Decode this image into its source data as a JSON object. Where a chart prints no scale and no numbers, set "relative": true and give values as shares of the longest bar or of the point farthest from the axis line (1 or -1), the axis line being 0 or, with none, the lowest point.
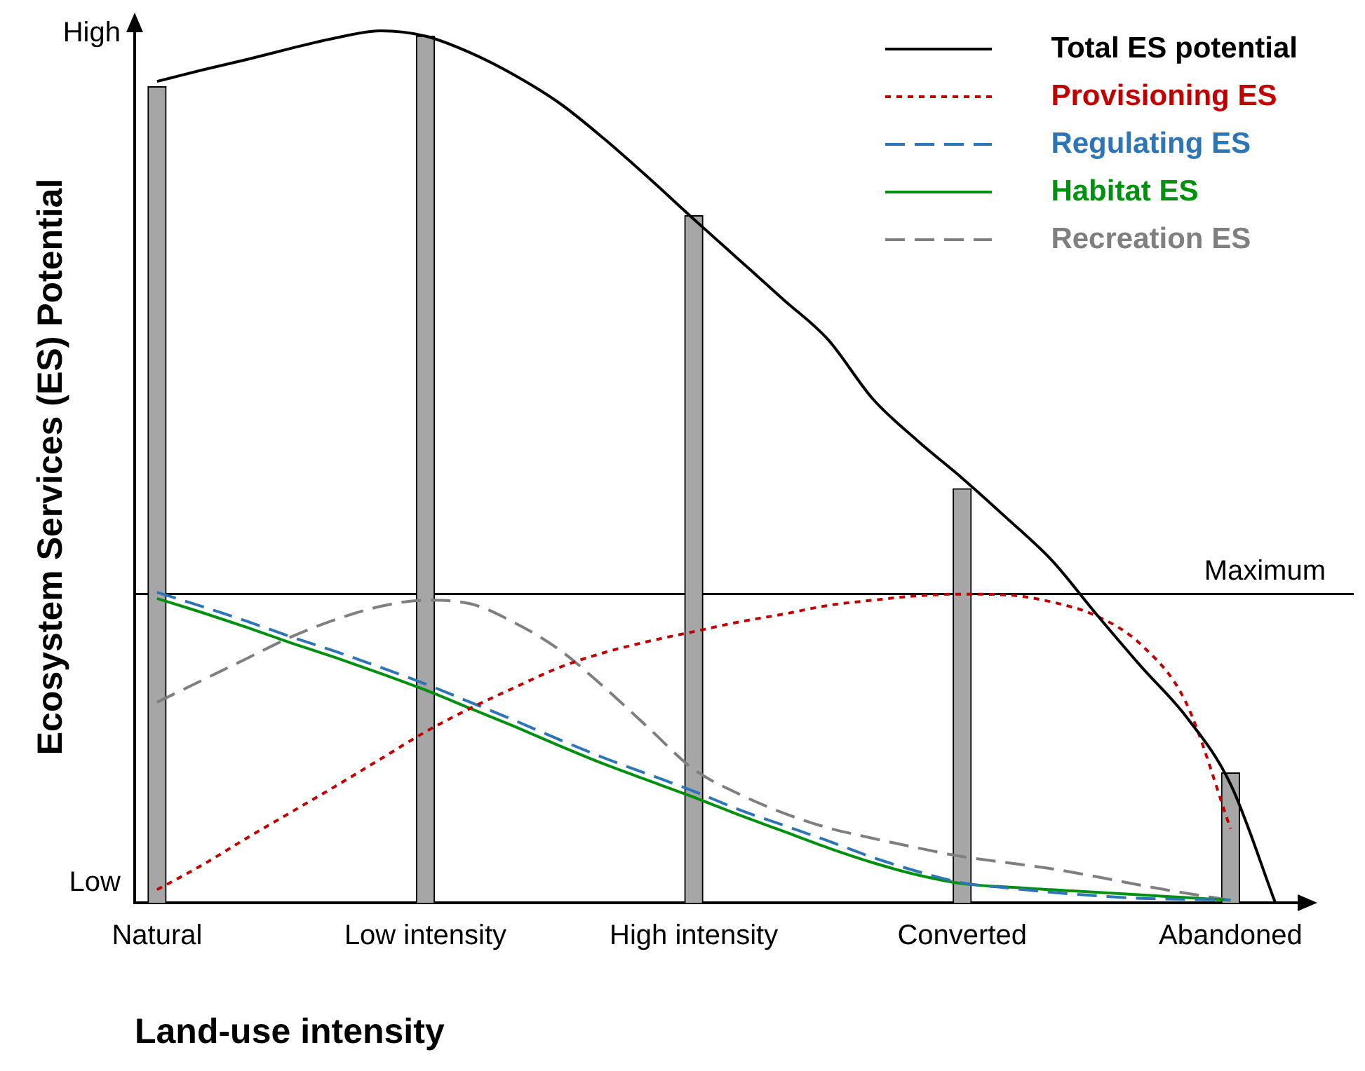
{
  "chart_data": {
    "type": "line",
    "relative": true,
    "xlabel": "Land-use intensity",
    "ylabel": "Ecosystem Services (ES) Potential",
    "categories": [
      "Natural",
      null,
      null,
      null,
      null,
      null,
      "Low intensity",
      null,
      null,
      null,
      null,
      null,
      "High intensity",
      null,
      null,
      null,
      null,
      null,
      "Converted",
      null,
      null,
      null,
      null,
      null,
      "Abandoned",
      null
    ],
    "series": [
      {
        "type": "bar",
        "color": "#a6a6a6",
        "values": [
          0.936,
          null,
          null,
          null,
          null,
          null,
          0.994,
          null,
          null,
          null,
          null,
          null,
          0.788,
          null,
          null,
          null,
          null,
          null,
          0.475,
          null,
          null,
          null,
          null,
          null,
          0.149,
          null
        ]
      },
      {
        "name": "Total ES potential",
        "color": "#000000",
        "line_style": "solid",
        "values": [
          0.942,
          0.955,
          0.967,
          0.98,
          0.992,
          1.0,
          0.994,
          0.975,
          0.949,
          0.917,
          0.876,
          0.831,
          0.784,
          0.738,
          0.692,
          0.646,
          0.578,
          0.53,
          0.487,
          0.441,
          0.393,
          0.331,
          0.271,
          0.214,
          0.136,
          0.0
        ]
      },
      {
        "name": "Provisioning ES",
        "color": "#c00000",
        "line_style": "dotted",
        "values": [
          0.015,
          0.043,
          0.074,
          0.104,
          0.134,
          0.165,
          0.196,
          0.223,
          0.247,
          0.27,
          0.287,
          0.3,
          0.311,
          0.322,
          0.331,
          0.341,
          0.347,
          0.352,
          0.354,
          0.353,
          0.345,
          0.329,
          0.296,
          0.23,
          0.085,
          null
        ]
      },
      {
        "name": "Regulating ES",
        "color": "#2e75b6",
        "line_style": "dashed",
        "values": [
          0.356,
          0.34,
          0.323,
          0.305,
          0.288,
          0.27,
          0.251,
          0.23,
          0.209,
          0.187,
          0.166,
          0.147,
          0.128,
          0.107,
          0.089,
          0.071,
          0.052,
          0.036,
          0.023,
          0.017,
          0.012,
          0.008,
          0.005,
          0.004,
          0.003,
          null
        ]
      },
      {
        "name": "Habitat ES",
        "color": "#00900f",
        "line_style": "solid",
        "values": [
          0.349,
          0.333,
          0.316,
          0.298,
          0.281,
          0.263,
          0.244,
          0.223,
          0.202,
          0.18,
          0.159,
          0.14,
          0.121,
          0.101,
          0.082,
          0.063,
          0.046,
          0.032,
          0.022,
          0.018,
          0.015,
          0.012,
          0.009,
          0.006,
          0.003,
          null
        ]
      },
      {
        "name": "Recreation ES",
        "color": "#7f7f7f",
        "line_style": "dashed",
        "values": [
          0.23,
          0.255,
          0.28,
          0.305,
          0.325,
          0.34,
          0.347,
          0.343,
          0.321,
          0.29,
          0.247,
          0.2,
          0.153,
          0.125,
          0.103,
          0.086,
          0.074,
          0.063,
          0.053,
          0.046,
          0.039,
          0.03,
          0.02,
          0.011,
          0.003,
          null
        ]
      }
    ],
    "ref_lines": [
      {
        "axis": "y",
        "value": 0.354,
        "label": "Maximum",
        "color": "#000000"
      }
    ],
    "annotations": [
      "High",
      "Low"
    ],
    "marker": "none",
    "grid": false,
    "legend": "top right"
  }
}
